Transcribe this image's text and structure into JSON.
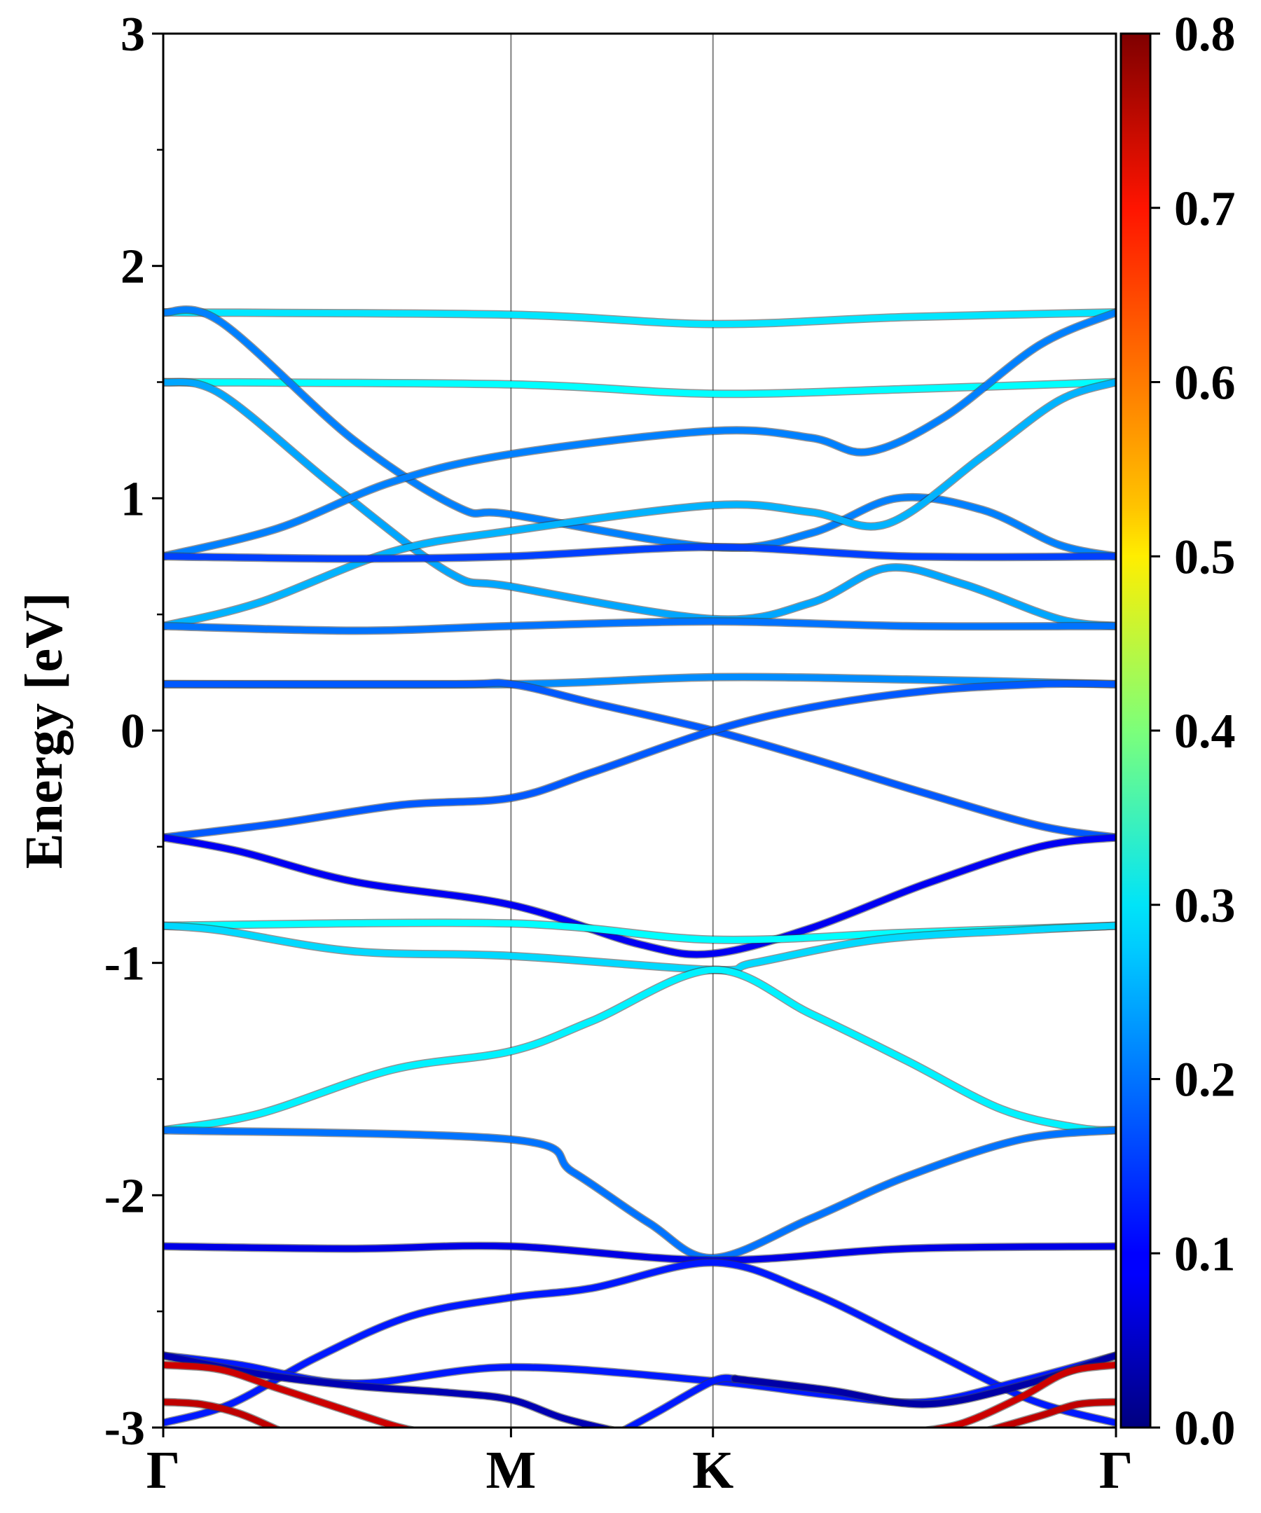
{
  "chart_data": {
    "type": "line",
    "ylabel": "Energy [eV]",
    "xlabel": "",
    "ylim": [
      -3,
      3
    ],
    "yticks": [
      "3",
      "2",
      "1",
      "0",
      "-1",
      "-2",
      "-3"
    ],
    "kpoints": [
      {
        "label": "Γ",
        "x": 0
      },
      {
        "label": "M",
        "x": 0.365
      },
      {
        "label": "K",
        "x": 0.577
      },
      {
        "label": "Γ",
        "x": 1
      }
    ],
    "colorbar": {
      "range": [
        0,
        0.8
      ],
      "tick_labels": [
        "0.0",
        "0.1",
        "0.2",
        "0.3",
        "0.4",
        "0.5",
        "0.6",
        "0.7",
        "0.8"
      ],
      "colormap": "jet"
    },
    "series": [
      {
        "points": [
          [
            0,
            1.8
          ],
          [
            0.365,
            1.79
          ],
          [
            0.577,
            1.75
          ],
          [
            0.78,
            1.78
          ],
          [
            1,
            1.8
          ]
        ],
        "weight": 0.28
      },
      {
        "points": [
          [
            0,
            1.5
          ],
          [
            0.365,
            1.49
          ],
          [
            0.577,
            1.45
          ],
          [
            0.78,
            1.47
          ],
          [
            1,
            1.5
          ]
        ],
        "weight": 0.3
      },
      {
        "points": [
          [
            0,
            1.8
          ],
          [
            0.06,
            1.76
          ],
          [
            0.2,
            1.25
          ],
          [
            0.31,
            0.96
          ],
          [
            0.365,
            0.93
          ],
          [
            0.577,
            0.79
          ],
          [
            0.68,
            0.85
          ],
          [
            0.77,
            1.0
          ],
          [
            0.86,
            0.95
          ],
          [
            0.94,
            0.8
          ],
          [
            1,
            0.75
          ]
        ],
        "weight": 0.2
      },
      {
        "points": [
          [
            0,
            1.5
          ],
          [
            0.06,
            1.45
          ],
          [
            0.18,
            1.05
          ],
          [
            0.3,
            0.68
          ],
          [
            0.365,
            0.62
          ],
          [
            0.577,
            0.48
          ],
          [
            0.68,
            0.55
          ],
          [
            0.76,
            0.7
          ],
          [
            0.84,
            0.63
          ],
          [
            0.94,
            0.48
          ],
          [
            1,
            0.45
          ]
        ],
        "weight": 0.23
      },
      {
        "points": [
          [
            0,
            0.75
          ],
          [
            0.12,
            0.87
          ],
          [
            0.24,
            1.07
          ],
          [
            0.365,
            1.19
          ],
          [
            0.577,
            1.29
          ],
          [
            0.68,
            1.26
          ],
          [
            0.74,
            1.2
          ],
          [
            0.82,
            1.35
          ],
          [
            0.92,
            1.66
          ],
          [
            1,
            1.8
          ]
        ],
        "weight": 0.2
      },
      {
        "points": [
          [
            0,
            0.45
          ],
          [
            0.1,
            0.55
          ],
          [
            0.24,
            0.77
          ],
          [
            0.365,
            0.86
          ],
          [
            0.577,
            0.97
          ],
          [
            0.68,
            0.94
          ],
          [
            0.76,
            0.89
          ],
          [
            0.86,
            1.18
          ],
          [
            0.94,
            1.42
          ],
          [
            1,
            1.5
          ]
        ],
        "weight": 0.24
      },
      {
        "points": [
          [
            0,
            0.75
          ],
          [
            0.2,
            0.74
          ],
          [
            0.365,
            0.75
          ],
          [
            0.577,
            0.79
          ],
          [
            0.78,
            0.75
          ],
          [
            1,
            0.75
          ]
        ],
        "weight": 0.15
      },
      {
        "points": [
          [
            0,
            0.45
          ],
          [
            0.2,
            0.43
          ],
          [
            0.365,
            0.45
          ],
          [
            0.577,
            0.47
          ],
          [
            0.78,
            0.45
          ],
          [
            1,
            0.45
          ]
        ],
        "weight": 0.19
      },
      {
        "points": [
          [
            0,
            0.2
          ],
          [
            0.365,
            0.2
          ],
          [
            0.577,
            0.23
          ],
          [
            0.78,
            0.22
          ],
          [
            1,
            0.2
          ]
        ],
        "weight": 0.21
      },
      {
        "points": [
          [
            0,
            0.2
          ],
          [
            0.3,
            0.2
          ],
          [
            0.365,
            0.2
          ],
          [
            0.45,
            0.12
          ],
          [
            0.577,
            0.0
          ],
          [
            0.68,
            -0.12
          ],
          [
            0.8,
            -0.27
          ],
          [
            0.92,
            -0.41
          ],
          [
            1,
            -0.46
          ]
        ],
        "weight": 0.17
      },
      {
        "points": [
          [
            0,
            -0.46
          ],
          [
            0.12,
            -0.4
          ],
          [
            0.25,
            -0.32
          ],
          [
            0.365,
            -0.29
          ],
          [
            0.45,
            -0.18
          ],
          [
            0.577,
            0.0
          ],
          [
            0.68,
            0.1
          ],
          [
            0.8,
            0.17
          ],
          [
            0.92,
            0.2
          ],
          [
            1,
            0.2
          ]
        ],
        "weight": 0.17
      },
      {
        "points": [
          [
            0,
            -0.46
          ],
          [
            0.08,
            -0.52
          ],
          [
            0.2,
            -0.65
          ],
          [
            0.365,
            -0.75
          ],
          [
            0.5,
            -0.92
          ],
          [
            0.577,
            -0.96
          ],
          [
            0.68,
            -0.85
          ],
          [
            0.8,
            -0.66
          ],
          [
            0.92,
            -0.5
          ],
          [
            1,
            -0.46
          ]
        ],
        "weight": 0.09
      },
      {
        "points": [
          [
            0,
            -0.84
          ],
          [
            0.365,
            -0.83
          ],
          [
            0.577,
            -0.9
          ],
          [
            0.78,
            -0.87
          ],
          [
            1,
            -0.84
          ]
        ],
        "weight": 0.3
      },
      {
        "points": [
          [
            0,
            -0.84
          ],
          [
            0.06,
            -0.86
          ],
          [
            0.2,
            -0.95
          ],
          [
            0.365,
            -0.97
          ],
          [
            0.577,
            -1.03
          ],
          [
            0.62,
            -1.0
          ],
          [
            0.75,
            -0.9
          ],
          [
            0.9,
            -0.86
          ],
          [
            1,
            -0.84
          ]
        ],
        "weight": 0.27
      },
      {
        "points": [
          [
            0,
            -1.72
          ],
          [
            0.1,
            -1.65
          ],
          [
            0.24,
            -1.46
          ],
          [
            0.365,
            -1.38
          ],
          [
            0.45,
            -1.25
          ],
          [
            0.577,
            -1.03
          ],
          [
            0.68,
            -1.22
          ],
          [
            0.78,
            -1.42
          ],
          [
            0.88,
            -1.63
          ],
          [
            0.96,
            -1.71
          ],
          [
            1,
            -1.72
          ]
        ],
        "weight": 0.29
      },
      {
        "points": [
          [
            0,
            -1.72
          ],
          [
            0.365,
            -1.76
          ],
          [
            0.43,
            -1.9
          ],
          [
            0.51,
            -2.12
          ],
          [
            0.577,
            -2.27
          ],
          [
            0.68,
            -2.1
          ],
          [
            0.78,
            -1.92
          ],
          [
            0.9,
            -1.76
          ],
          [
            1,
            -1.72
          ]
        ],
        "weight": 0.19
      },
      {
        "points": [
          [
            0,
            -2.22
          ],
          [
            0.2,
            -2.23
          ],
          [
            0.365,
            -2.22
          ],
          [
            0.577,
            -2.28
          ],
          [
            0.78,
            -2.23
          ],
          [
            1,
            -2.22
          ]
        ],
        "weight": 0.08
      },
      {
        "points": [
          [
            0,
            -2.98
          ],
          [
            0.07,
            -2.9
          ],
          [
            0.16,
            -2.7
          ],
          [
            0.26,
            -2.52
          ],
          [
            0.365,
            -2.44
          ],
          [
            0.45,
            -2.4
          ],
          [
            0.577,
            -2.29
          ],
          [
            0.68,
            -2.42
          ],
          [
            0.8,
            -2.66
          ],
          [
            0.91,
            -2.88
          ],
          [
            1,
            -2.98
          ]
        ],
        "weight": 0.12
      },
      {
        "points": [
          [
            0,
            -2.69
          ],
          [
            0.08,
            -2.73
          ],
          [
            0.2,
            -2.81
          ],
          [
            0.365,
            -2.74
          ],
          [
            0.577,
            -2.8
          ],
          [
            0.7,
            -2.86
          ],
          [
            0.8,
            -2.89
          ],
          [
            0.9,
            -2.8
          ],
          [
            1,
            -2.69
          ]
        ],
        "weight": 0.12
      },
      {
        "points": [
          [
            0,
            -2.69
          ],
          [
            0.1,
            -2.77
          ],
          [
            0.2,
            -2.82
          ],
          [
            0.3,
            -2.85
          ],
          [
            0.365,
            -2.88
          ],
          [
            0.42,
            -2.96
          ],
          [
            0.48,
            -3.02
          ]
        ],
        "weight": 0.04
      },
      {
        "points": [
          [
            0.48,
            -3.02
          ],
          [
            0.52,
            -2.93
          ],
          [
            0.577,
            -2.8
          ],
          [
            0.6,
            -2.79
          ]
        ],
        "weight": 0.12
      },
      {
        "points": [
          [
            0.6,
            -2.79
          ],
          [
            0.7,
            -2.84
          ],
          [
            0.8,
            -2.9
          ],
          [
            0.9,
            -2.82
          ],
          [
            1,
            -2.69
          ]
        ],
        "weight": 0.03
      },
      {
        "points": [
          [
            0,
            -2.73
          ],
          [
            0.06,
            -2.75
          ],
          [
            0.12,
            -2.83
          ],
          [
            0.18,
            -2.91
          ],
          [
            0.24,
            -2.99
          ],
          [
            0.27,
            -3.02
          ]
        ],
        "weight": 0.74
      },
      {
        "points": [
          [
            0,
            -2.89
          ],
          [
            0.04,
            -2.9
          ],
          [
            0.08,
            -2.94
          ],
          [
            0.12,
            -3.01
          ]
        ],
        "weight": 0.75
      },
      {
        "points": [
          [
            0.79,
            -3.02
          ],
          [
            0.84,
            -2.98
          ],
          [
            0.9,
            -2.87
          ],
          [
            0.95,
            -2.76
          ],
          [
            1,
            -2.73
          ]
        ],
        "weight": 0.74
      },
      {
        "points": [
          [
            0.86,
            -3.02
          ],
          [
            0.92,
            -2.95
          ],
          [
            0.96,
            -2.9
          ],
          [
            1,
            -2.89
          ]
        ],
        "weight": 0.75
      }
    ]
  }
}
